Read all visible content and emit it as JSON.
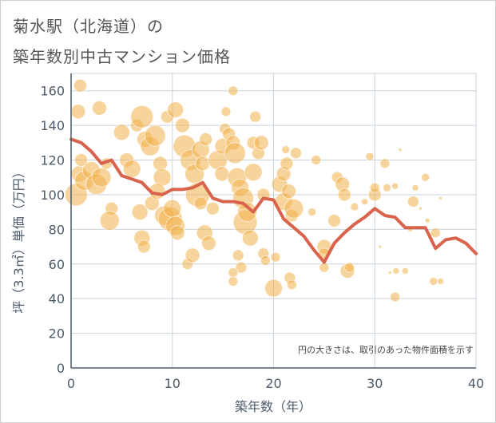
{
  "title": {
    "line1": "菊水駅（北海道）の",
    "line2": "築年数別中古マンション価格"
  },
  "colors": {
    "bubble": "#f0b04a",
    "line": "#d9644d",
    "grid": "#c9d3dc",
    "axis": "#4d5b6b",
    "background": "#ffffff"
  },
  "chart_data": {
    "type": "scatter",
    "title": "菊水駅（北海道）の築年数別中古マンション価格",
    "xlabel": "築年数（年）",
    "ylabel": "坪（3.3㎡）単価（万円）",
    "xlim": [
      0,
      40
    ],
    "ylim": [
      0,
      170
    ],
    "xticks": [
      0,
      10,
      20,
      30,
      40
    ],
    "yticks": [
      0,
      20,
      40,
      60,
      80,
      100,
      120,
      140,
      160
    ],
    "grid": true,
    "annotation": "円の大きさは、取引のあった物件面積を示す",
    "series": [
      {
        "type": "line",
        "points": [
          [
            0,
            132
          ],
          [
            1,
            130
          ],
          [
            2,
            125
          ],
          [
            3,
            118
          ],
          [
            4,
            120
          ],
          [
            5,
            111
          ],
          [
            6,
            109
          ],
          [
            7,
            107
          ],
          [
            8,
            101
          ],
          [
            9,
            100
          ],
          [
            10,
            103
          ],
          [
            11,
            103
          ],
          [
            12,
            104
          ],
          [
            13,
            107
          ],
          [
            14,
            98
          ],
          [
            15,
            96
          ],
          [
            16,
            96
          ],
          [
            17,
            95
          ],
          [
            18,
            90
          ],
          [
            19,
            98
          ],
          [
            20,
            97
          ],
          [
            21,
            86
          ],
          [
            22,
            81
          ],
          [
            23,
            76
          ],
          [
            24,
            68
          ],
          [
            25,
            61
          ],
          [
            26,
            72
          ],
          [
            27,
            78
          ],
          [
            28,
            83
          ],
          [
            29,
            87
          ],
          [
            30,
            92
          ],
          [
            31,
            88
          ],
          [
            32,
            87
          ],
          [
            33,
            81
          ],
          [
            34,
            81
          ],
          [
            35,
            81
          ],
          [
            36,
            69
          ],
          [
            37,
            74
          ],
          [
            38,
            75
          ],
          [
            39,
            72
          ],
          [
            40,
            66
          ]
        ]
      },
      {
        "type": "bubble",
        "points": [
          [
            0.5,
            100,
            14
          ],
          [
            0.8,
            112,
            10
          ],
          [
            1,
            120,
            8
          ],
          [
            1.3,
            108,
            12
          ],
          [
            0.7,
            148,
            9
          ],
          [
            0.9,
            163,
            8
          ],
          [
            2,
            114,
            11
          ],
          [
            2.5,
            106,
            13
          ],
          [
            3,
            110,
            12
          ],
          [
            2.8,
            150,
            9
          ],
          [
            3.5,
            118,
            7
          ],
          [
            4,
            92,
            8
          ],
          [
            3.8,
            85,
            12
          ],
          [
            5,
            136,
            10
          ],
          [
            5.5,
            120,
            9
          ],
          [
            6,
            115,
            11
          ],
          [
            6.5,
            140,
            8
          ],
          [
            7,
            145,
            14
          ],
          [
            7.3,
            132,
            10
          ],
          [
            7.8,
            128,
            12
          ],
          [
            8.3,
            134,
            13
          ],
          [
            8.8,
            118,
            9
          ],
          [
            9,
            110,
            11
          ],
          [
            6.8,
            90,
            10
          ],
          [
            7,
            75,
            10
          ],
          [
            7.2,
            70,
            8
          ],
          [
            8,
            95,
            9
          ],
          [
            8.5,
            102,
            10
          ],
          [
            9.2,
            88,
            12
          ],
          [
            9.8,
            86,
            15
          ],
          [
            10,
            92,
            11
          ],
          [
            10.3,
            82,
            12
          ],
          [
            10.5,
            78,
            9
          ],
          [
            9.5,
            145,
            8
          ],
          [
            10.3,
            149,
            10
          ],
          [
            11,
            140,
            9
          ],
          [
            11.2,
            128,
            14
          ],
          [
            11.8,
            120,
            13
          ],
          [
            12.2,
            112,
            12
          ],
          [
            12.5,
            100,
            15
          ],
          [
            12.8,
            126,
            11
          ],
          [
            13,
            118,
            9
          ],
          [
            13.3,
            132,
            8
          ],
          [
            11.5,
            60,
            7
          ],
          [
            12,
            65,
            9
          ],
          [
            12.8,
            95,
            8
          ],
          [
            13.2,
            78,
            10
          ],
          [
            13.6,
            72,
            9
          ],
          [
            14,
            92,
            8
          ],
          [
            14.5,
            120,
            12
          ],
          [
            14.9,
            112,
            9
          ],
          [
            15,
            128,
            10
          ],
          [
            15.2,
            138,
            7
          ],
          [
            15.3,
            148,
            6
          ],
          [
            15.6,
            135,
            8
          ],
          [
            16,
            130,
            9
          ],
          [
            16.2,
            124,
            13
          ],
          [
            16.4,
            110,
            12
          ],
          [
            16.7,
            104,
            11
          ],
          [
            17,
            98,
            13
          ],
          [
            17.2,
            84,
            15
          ],
          [
            17.4,
            90,
            12
          ],
          [
            17.7,
            75,
            10
          ],
          [
            18,
            113,
            11
          ],
          [
            18,
            130,
            8
          ],
          [
            18.2,
            145,
            7
          ],
          [
            16,
            160,
            6
          ],
          [
            16.5,
            65,
            7
          ],
          [
            16.8,
            58,
            7
          ],
          [
            16,
            55,
            6
          ],
          [
            16,
            50,
            6
          ],
          [
            18.5,
            124,
            8
          ],
          [
            18.8,
            130,
            9
          ],
          [
            19,
            100,
            8
          ],
          [
            19,
            66,
            7
          ],
          [
            19.2,
            62,
            6
          ],
          [
            20,
            46,
            11
          ],
          [
            20.2,
            64,
            6
          ],
          [
            20.6,
            106,
            10
          ],
          [
            21,
            112,
            9
          ],
          [
            21.3,
            118,
            8
          ],
          [
            21,
            96,
            11
          ],
          [
            21.5,
            102,
            9
          ],
          [
            21.8,
            88,
            8
          ],
          [
            22,
            92,
            12
          ],
          [
            21.6,
            52,
            7
          ],
          [
            21.8,
            48,
            6
          ],
          [
            22.2,
            124,
            7
          ],
          [
            21.2,
            126,
            5
          ],
          [
            24.2,
            120,
            6
          ],
          [
            23.8,
            90,
            5
          ],
          [
            25,
            70,
            9
          ],
          [
            25,
            66,
            7
          ],
          [
            25,
            58,
            6
          ],
          [
            26,
            85,
            8
          ],
          [
            26.3,
            110,
            7
          ],
          [
            26.8,
            106,
            9
          ],
          [
            27,
            100,
            8
          ],
          [
            27.3,
            56,
            9
          ],
          [
            27.5,
            58,
            6
          ],
          [
            28,
            93,
            5
          ],
          [
            29,
            96,
            4
          ],
          [
            29.5,
            122,
            5
          ],
          [
            30,
            100,
            8
          ],
          [
            30,
            104,
            6
          ],
          [
            30.5,
            70,
            2
          ],
          [
            31,
            118,
            6
          ],
          [
            31.2,
            104,
            5
          ],
          [
            31.5,
            55,
            2
          ],
          [
            32,
            105,
            4
          ],
          [
            32.1,
            56,
            4
          ],
          [
            32.5,
            126,
            2
          ],
          [
            32,
            41,
            6
          ],
          [
            33,
            56,
            4
          ],
          [
            33.5,
            80,
            3
          ],
          [
            33.8,
            96,
            7
          ],
          [
            34,
            104,
            4
          ],
          [
            34.5,
            92,
            2
          ],
          [
            35,
            110,
            5
          ],
          [
            35.2,
            85,
            3
          ],
          [
            35.5,
            77,
            2
          ],
          [
            36,
            78,
            6
          ],
          [
            36.5,
            98,
            2
          ],
          [
            35.8,
            50,
            5
          ],
          [
            36.5,
            50,
            4
          ]
        ]
      }
    ]
  }
}
